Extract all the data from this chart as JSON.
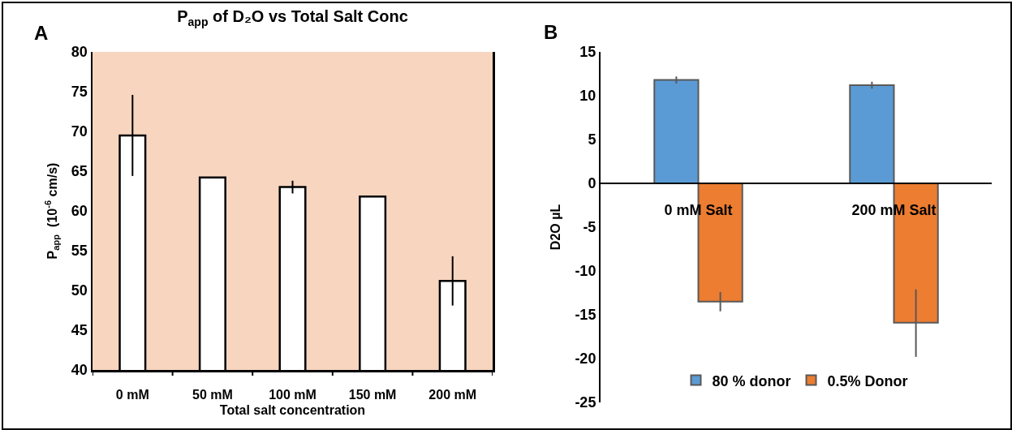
{
  "chart_data": [
    {
      "type": "bar",
      "title": "P$_{app}$ of D₂O vs Total Salt Conc",
      "xlabel": "Total salt concentration",
      "ylabel": "P$_{app}$  (10$^{-6}$ cm/s)",
      "annotations": [
        "A"
      ],
      "categories": [
        "0 mM",
        "50 mM",
        "100 mM",
        "150 mM",
        "200 mM"
      ],
      "series": [
        {
          "color": "#ffffff",
          "values": [
            69.5,
            64.2,
            63,
            61.8,
            51.2
          ],
          "errors": [
            5.1,
            null,
            0.8,
            null,
            3.1
          ]
        }
      ],
      "ylim": [
        40,
        80
      ],
      "yticks": [
        40,
        45,
        50,
        55,
        60,
        65,
        70,
        75,
        80
      ],
      "grid": false,
      "legend": false
    },
    {
      "type": "bar",
      "ylabel": "D2O µL",
      "annotations": [
        "B"
      ],
      "categories": [
        "0 mM Salt",
        "200 mM Salt"
      ],
      "series": [
        {
          "name": "80 % donor",
          "color": "#5b9bd5",
          "values": [
            11.8,
            11.2
          ],
          "errors": [
            0.4,
            0.4
          ]
        },
        {
          "name": "0.5% Donor",
          "color": "#ed7d31",
          "values": [
            -13.5,
            -15.9
          ],
          "errors": [
            [
              -14.6,
              -12.4
            ],
            [
              -19.8,
              -12.1
            ]
          ]
        }
      ],
      "ylim": [
        -25,
        15
      ],
      "yticks": [
        -25,
        -20,
        -15,
        -10,
        -5,
        0,
        5,
        10,
        15
      ],
      "grid": false,
      "legend": "bottom"
    }
  ]
}
